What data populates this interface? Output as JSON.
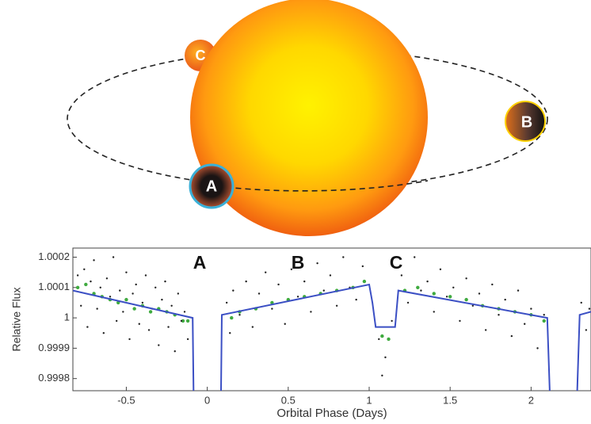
{
  "diagram": {
    "planets": [
      "A",
      "B",
      "C"
    ]
  },
  "chart_data": {
    "type": "line",
    "ylabel": "Relative Flux",
    "xlabel": "Orbital Phase (Days)",
    "annotations": [
      "A",
      "B",
      "C"
    ],
    "xlim": [
      -0.83,
      2.37
    ],
    "ylim": [
      0.99976,
      1.00023
    ],
    "xticks": [
      -0.5,
      0,
      0.5,
      1,
      1.5,
      2
    ],
    "yticks": [
      1.0002,
      1.0001,
      1,
      0.9999,
      0.9998
    ],
    "series": [
      {
        "mode": "markers",
        "color": "#222222",
        "x": [
          -0.8,
          -0.78,
          -0.76,
          -0.74,
          -0.72,
          -0.7,
          -0.68,
          -0.66,
          -0.64,
          -0.62,
          -0.6,
          -0.58,
          -0.56,
          -0.54,
          -0.52,
          -0.5,
          -0.48,
          -0.46,
          -0.44,
          -0.42,
          -0.4,
          -0.38,
          -0.36,
          -0.34,
          -0.32,
          -0.3,
          -0.28,
          -0.26,
          -0.24,
          -0.22,
          -0.2,
          -0.18,
          -0.16,
          -0.14,
          -0.12,
          0.12,
          0.14,
          0.16,
          0.2,
          0.24,
          0.28,
          0.32,
          0.36,
          0.4,
          0.44,
          0.48,
          0.52,
          0.56,
          0.6,
          0.64,
          0.68,
          0.72,
          0.76,
          0.8,
          0.84,
          0.88,
          0.92,
          0.96,
          1.06,
          1.08,
          1.1,
          1.14,
          1.2,
          1.24,
          1.28,
          1.32,
          1.36,
          1.4,
          1.44,
          1.48,
          1.52,
          1.56,
          1.6,
          1.64,
          1.68,
          1.72,
          1.76,
          1.8,
          1.84,
          1.88,
          1.92,
          1.96,
          2.0,
          2.04,
          2.08,
          2.31,
          2.34,
          2.36
        ],
        "values": [
          1.00014,
          1.00004,
          1.00016,
          0.99997,
          1.00012,
          1.00019,
          1.00003,
          1.0001,
          0.99995,
          1.00013,
          1.00007,
          1.0002,
          0.99999,
          1.00009,
          1.00002,
          1.00015,
          0.99993,
          1.00008,
          1.00011,
          0.99998,
          1.00005,
          1.00014,
          0.99996,
          1.00003,
          1.0001,
          0.99991,
          1.00006,
          1.00012,
          0.99997,
          1.00004,
          0.99989,
          1.00008,
          0.99999,
          1.00002,
          0.99993,
          1.00005,
          0.99995,
          1.00009,
          1.00001,
          1.00012,
          0.99997,
          1.00008,
          1.00015,
          1.00003,
          1.00011,
          0.99998,
          1.00016,
          1.00007,
          1.00012,
          1.00002,
          1.00018,
          1.00009,
          1.00014,
          1.00004,
          1.0002,
          1.0001,
          1.00006,
          1.00017,
          0.99993,
          0.99981,
          0.99987,
          0.99999,
          1.00014,
          1.00005,
          1.0002,
          1.00009,
          1.00012,
          1.00002,
          1.00016,
          1.00007,
          1.0001,
          0.99999,
          1.00013,
          1.00004,
          1.00008,
          0.99996,
          1.00011,
          1.00001,
          1.00006,
          0.99994,
          1.00009,
          0.99998,
          1.00003,
          0.9999,
          1.00001,
          1.00005,
          0.99996,
          1.00003
        ]
      },
      {
        "mode": "markers",
        "color": "#3faa3f",
        "x": [
          -0.8,
          -0.75,
          -0.7,
          -0.65,
          -0.6,
          -0.55,
          -0.5,
          -0.45,
          -0.4,
          -0.35,
          -0.3,
          -0.25,
          -0.2,
          -0.15,
          -0.12,
          0.15,
          0.2,
          0.3,
          0.4,
          0.5,
          0.6,
          0.7,
          0.8,
          0.9,
          0.97,
          1.08,
          1.12,
          1.22,
          1.3,
          1.4,
          1.5,
          1.6,
          1.7,
          1.8,
          1.9,
          2.0,
          2.08
        ],
        "values": [
          1.0001,
          1.00011,
          1.00008,
          1.00007,
          1.00006,
          1.00005,
          1.00006,
          1.00003,
          1.00004,
          1.00002,
          1.00003,
          1.00002,
          1.00001,
          0.99999,
          0.99999,
          1.0,
          1.00002,
          1.00003,
          1.00005,
          1.00006,
          1.00007,
          1.00008,
          1.00009,
          1.0001,
          1.00012,
          0.99994,
          0.99993,
          1.00009,
          1.0001,
          1.00008,
          1.00007,
          1.00006,
          1.00004,
          1.00003,
          1.00002,
          1.00001,
          0.99999
        ]
      },
      {
        "mode": "line",
        "color": "#3b4fc4",
        "x": [
          -0.83,
          -0.09,
          -0.085,
          null,
          0.085,
          0.09,
          1.0,
          1.02,
          1.04,
          1.16,
          1.18,
          2.1,
          2.115,
          null,
          2.285,
          2.3,
          2.37
        ],
        "values": [
          1.00009,
          1.0,
          0.99976,
          null,
          0.99976,
          1.00001,
          1.00011,
          1.00005,
          0.99997,
          0.99997,
          1.00009,
          1.0,
          0.99976,
          null,
          0.99976,
          1.00001,
          1.00002
        ]
      }
    ]
  }
}
